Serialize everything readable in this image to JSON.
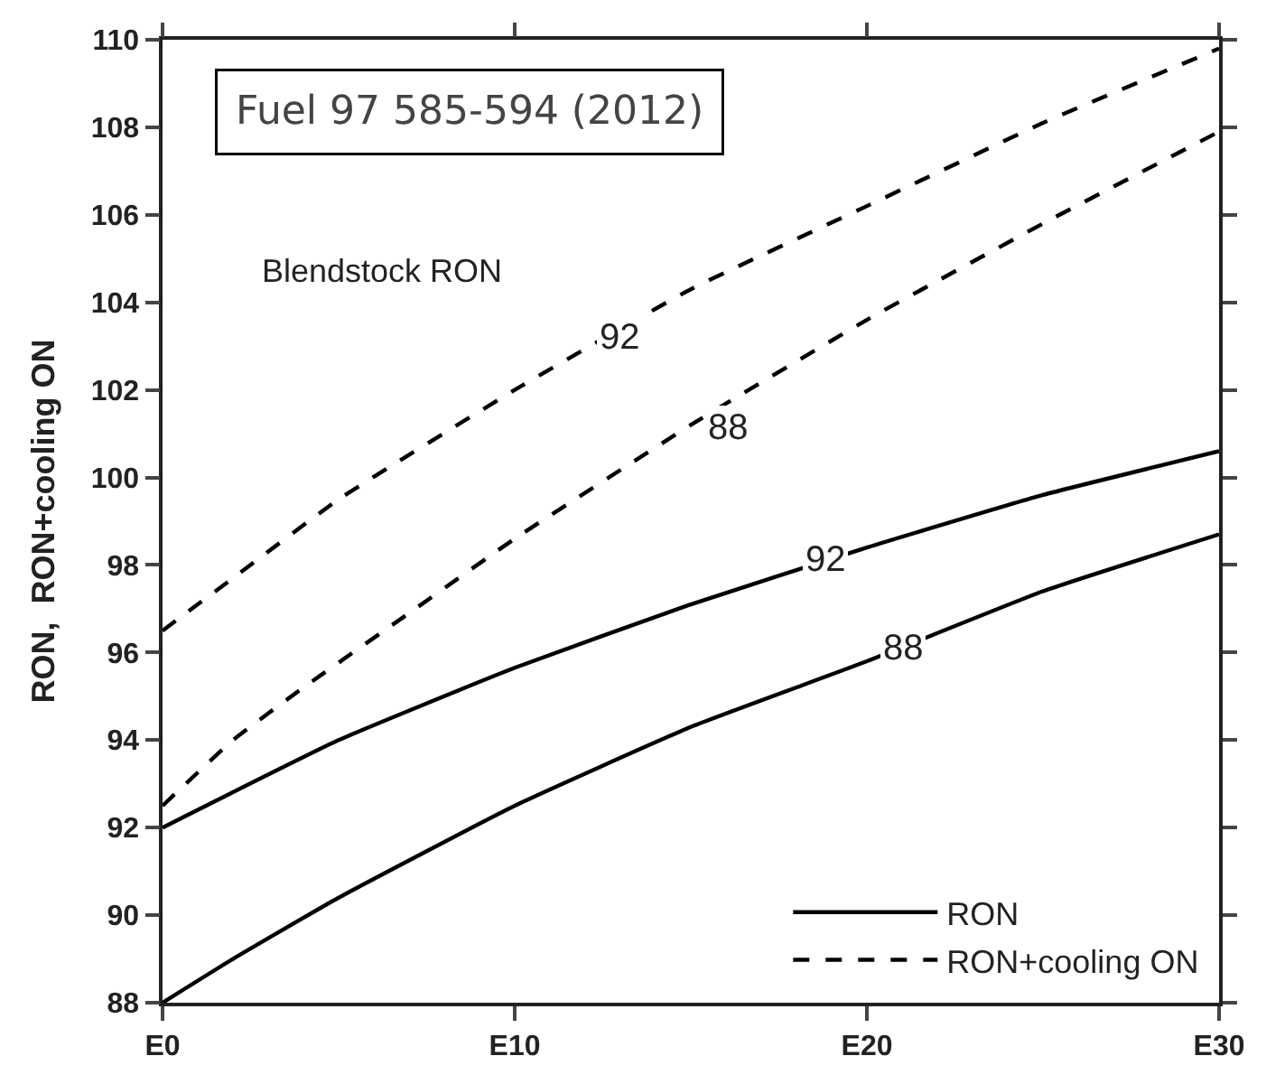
{
  "chart_data": {
    "type": "line",
    "ylabel": "RON,  RON+cooling ON",
    "categories": [
      "E0",
      null,
      null,
      null,
      null,
      null,
      null,
      null,
      null,
      null,
      "E10",
      null,
      null,
      null,
      null,
      null,
      null,
      null,
      null,
      null,
      "E20",
      null,
      null,
      null,
      null,
      null,
      null,
      null,
      null,
      null,
      "E30"
    ],
    "ylim": [
      88,
      110
    ],
    "yticks": [
      88,
      90,
      92,
      94,
      96,
      98,
      100,
      102,
      104,
      106,
      108,
      110
    ],
    "legend": "bottom right",
    "marker": "none",
    "series": [
      {
        "name": "RON",
        "color": "#000000",
        "line_style": "solid",
        "values": [
          88.0,
          null,
          89.0,
          null,
          null,
          90.4,
          null,
          null,
          null,
          null,
          92.5,
          null,
          null,
          null,
          null,
          94.3,
          null,
          null,
          null,
          null,
          95.8,
          null,
          null,
          null,
          null,
          97.4,
          null,
          null,
          null,
          null,
          98.7
        ]
      },
      {
        "color": "#000000",
        "line_style": "solid",
        "values": [
          92.0,
          null,
          null,
          null,
          null,
          94.0,
          null,
          null,
          null,
          null,
          95.65,
          null,
          null,
          null,
          null,
          97.1,
          null,
          null,
          null,
          null,
          98.4,
          null,
          null,
          null,
          null,
          99.6,
          null,
          null,
          null,
          null,
          100.6
        ]
      },
      {
        "name": "RON+cooling ON",
        "color": "#000000",
        "line_style": "dashed",
        "values": [
          92.5,
          null,
          94.0,
          null,
          95.2,
          null,
          null,
          96.9,
          null,
          null,
          98.6,
          null,
          null,
          null,
          null,
          101.2,
          null,
          null,
          null,
          null,
          103.6,
          null,
          null,
          null,
          null,
          105.8,
          null,
          null,
          null,
          null,
          107.9
        ]
      },
      {
        "color": "#000000",
        "line_style": "dashed",
        "values": [
          96.5,
          null,
          97.7,
          null,
          null,
          99.5,
          null,
          null,
          null,
          null,
          102.0,
          null,
          null,
          null,
          null,
          104.3,
          null,
          null,
          null,
          null,
          106.2,
          null,
          null,
          null,
          null,
          108.1,
          null,
          null,
          null,
          null,
          109.8
        ]
      }
    ],
    "annotations": [
      "Fuel 97 585-594 (2012)",
      "Blendstock RON",
      "92",
      "88",
      "92",
      "88"
    ]
  }
}
